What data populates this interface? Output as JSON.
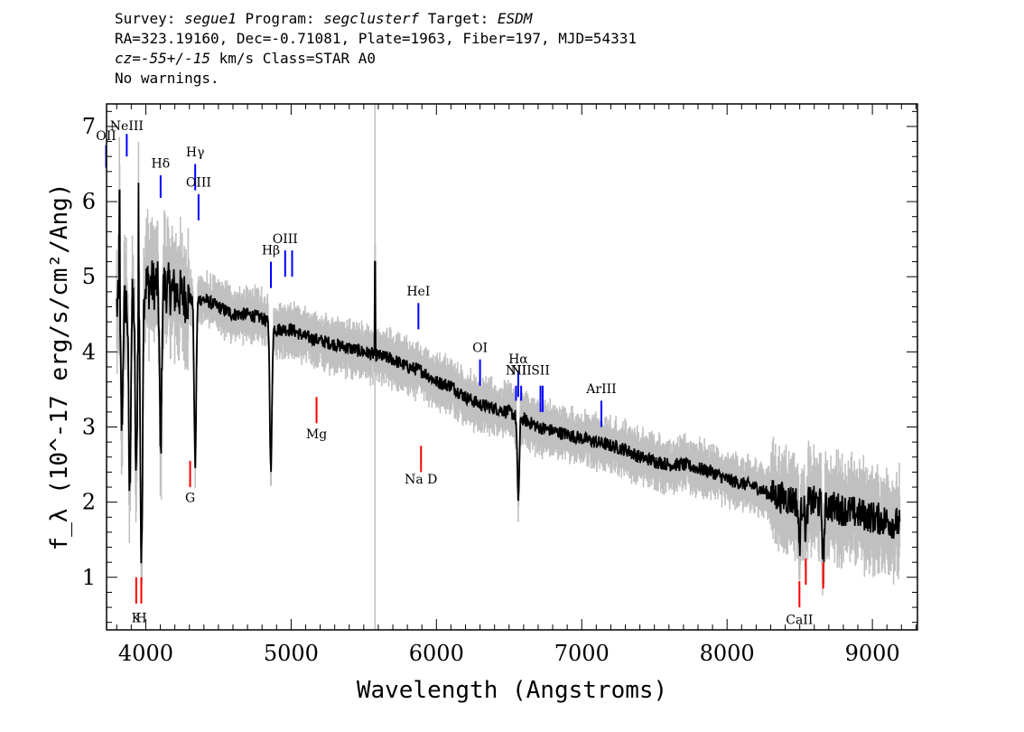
{
  "header": {
    "survey_label": "Survey: ",
    "survey": "segue1",
    "program_label": " Program: ",
    "program": "segclusterf",
    "target_label": " Target: ",
    "target": "ESDM",
    "line2": "RA=323.19160, Dec=-0.71081, Plate=1963, Fiber=197, MJD=54331",
    "cz": "cz=-55+/-15",
    "cz_units": " km/s Class=STAR A0",
    "warnings": "No warnings."
  },
  "chart_data": {
    "type": "line",
    "title": "",
    "xlabel": "Wavelength (Angstroms)",
    "ylabel": "f_λ (10^-17 erg/s/cm²/Ang)",
    "xlim": [
      3730,
      9310
    ],
    "ylim": [
      0.3,
      7.3
    ],
    "xticks": [
      "4000",
      "5000",
      "6000",
      "7000",
      "8000",
      "9000"
    ],
    "yticks": [
      "1",
      "2",
      "3",
      "4",
      "5",
      "6",
      "7"
    ],
    "grid": false,
    "colors": {
      "flux": "#000000",
      "error": "#c0c0c0",
      "emission": "#0000ff",
      "absorption": "#ff0000"
    },
    "series": [
      {
        "x": [
          3800,
          3900,
          4000,
          4100,
          4200,
          4300,
          4400,
          4500,
          4600,
          4700,
          4800,
          4900,
          5000,
          5100,
          5200,
          5300,
          5400,
          5500,
          5600,
          5700,
          5800,
          5900,
          6000,
          6100,
          6200,
          6300,
          6400,
          6500,
          6600,
          6700,
          6800,
          6900,
          7000,
          7100,
          7200,
          7300,
          7400,
          7500,
          7600,
          7700,
          7800,
          7900,
          8000,
          8100,
          8200,
          8300,
          8400,
          8500,
          8600,
          8700,
          8800,
          8900,
          9000,
          9100,
          9190
        ],
        "y": [
          4.6,
          4.7,
          4.9,
          4.9,
          4.8,
          4.7,
          4.7,
          4.6,
          4.5,
          4.5,
          4.45,
          4.3,
          4.3,
          4.2,
          4.15,
          4.1,
          4.05,
          4.0,
          3.95,
          3.9,
          3.8,
          3.75,
          3.6,
          3.55,
          3.4,
          3.3,
          3.25,
          3.2,
          3.1,
          3.0,
          2.95,
          2.9,
          2.85,
          2.8,
          2.75,
          2.7,
          2.6,
          2.55,
          2.5,
          2.5,
          2.45,
          2.4,
          2.3,
          2.25,
          2.2,
          2.1,
          2.05,
          2.0,
          2.0,
          1.95,
          1.9,
          1.85,
          1.8,
          1.75,
          1.7
        ]
      }
    ],
    "absorption_dips": [
      {
        "x": 3835,
        "y": 3.0
      },
      {
        "x": 3889,
        "y": 2.1
      },
      {
        "x": 3934,
        "y": 2.3
      },
      {
        "x": 3970,
        "y": 1.1
      },
      {
        "x": 4102,
        "y": 2.6
      },
      {
        "x": 4340,
        "y": 2.5
      },
      {
        "x": 4861,
        "y": 2.4
      },
      {
        "x": 6563,
        "y": 2.05
      },
      {
        "x": 8498,
        "y": 1.45
      },
      {
        "x": 8542,
        "y": 1.6
      },
      {
        "x": 8662,
        "y": 1.3
      }
    ],
    "spikes": [
      {
        "x": 3820,
        "y": 6.15
      },
      {
        "x": 3950,
        "y": 6.25
      },
      {
        "x": 5577,
        "y": 5.2
      }
    ],
    "line_markers": [
      {
        "label": "NeIII",
        "x": 3869,
        "kind": "emission",
        "y_top": 6.9,
        "y_bottom": 6.6,
        "label_y": 6.95
      },
      {
        "label": "OII",
        "x": 3727,
        "kind": "emission",
        "y_top": 6.75,
        "y_bottom": 6.45,
        "label_y": 6.82
      },
      {
        "label": "Hδ",
        "x": 4102,
        "kind": "emission",
        "y_top": 6.35,
        "y_bottom": 6.05,
        "label_y": 6.45
      },
      {
        "label": "Hγ",
        "x": 4340,
        "kind": "emission",
        "y_top": 6.5,
        "y_bottom": 6.15,
        "label_y": 6.6
      },
      {
        "label": "OIII",
        "x": 4363,
        "kind": "emission",
        "y_top": 6.1,
        "y_bottom": 5.75,
        "label_y": 6.2
      },
      {
        "label": "Hβ",
        "x": 4861,
        "kind": "emission",
        "y_top": 5.2,
        "y_bottom": 4.85,
        "label_y": 5.3
      },
      {
        "label": "OIII",
        "x": 4959,
        "kind": "emission",
        "y_top": 5.35,
        "y_bottom": 5.0,
        "label_y": 5.45
      },
      {
        "label": "",
        "x": 5007,
        "kind": "emission",
        "y_top": 5.35,
        "y_bottom": 5.0,
        "label_y": 0
      },
      {
        "label": "HeI",
        "x": 5876,
        "kind": "emission",
        "y_top": 4.65,
        "y_bottom": 4.3,
        "label_y": 4.75
      },
      {
        "label": "OI",
        "x": 6300,
        "kind": "emission",
        "y_top": 3.9,
        "y_bottom": 3.55,
        "label_y": 4.0
      },
      {
        "label": "NII",
        "x": 6548,
        "kind": "emission",
        "y_top": 3.55,
        "y_bottom": 3.35,
        "label_y": 3.7
      },
      {
        "label": "Hα",
        "x": 6563,
        "kind": "emission",
        "y_top": 3.75,
        "y_bottom": 3.4,
        "label_y": 3.85
      },
      {
        "label": "NII",
        "x": 6583,
        "kind": "emission",
        "y_top": 3.55,
        "y_bottom": 3.35,
        "label_y": 3.7
      },
      {
        "label": "SII",
        "x": 6716,
        "kind": "emission",
        "y_top": 3.55,
        "y_bottom": 3.2,
        "label_y": 3.7
      },
      {
        "label": "",
        "x": 6731,
        "kind": "emission",
        "y_top": 3.55,
        "y_bottom": 3.2,
        "label_y": 0
      },
      {
        "label": "ArIII",
        "x": 7135,
        "kind": "emission",
        "y_top": 3.35,
        "y_bottom": 3.0,
        "label_y": 3.45
      },
      {
        "label": "K",
        "x": 3934,
        "kind": "absorption",
        "y_top": 1.0,
        "y_bottom": 0.65,
        "label_y": 0.4
      },
      {
        "label": "H",
        "x": 3969,
        "kind": "absorption",
        "y_top": 1.0,
        "y_bottom": 0.65,
        "label_y": 0.4
      },
      {
        "label": "G",
        "x": 4305,
        "kind": "absorption",
        "y_top": 2.55,
        "y_bottom": 2.2,
        "label_y": 2.0
      },
      {
        "label": "Mg",
        "x": 5175,
        "kind": "absorption",
        "y_top": 3.4,
        "y_bottom": 3.05,
        "label_y": 2.85
      },
      {
        "label": "Na D",
        "x": 5894,
        "kind": "absorption",
        "y_top": 2.75,
        "y_bottom": 2.4,
        "label_y": 2.25
      },
      {
        "label": "CaII",
        "x": 8498,
        "kind": "absorption",
        "y_top": 0.95,
        "y_bottom": 0.6,
        "label_y": 0.38
      },
      {
        "label": "",
        "x": 8542,
        "kind": "absorption",
        "y_top": 1.25,
        "y_bottom": 0.9,
        "label_y": 0
      },
      {
        "label": "",
        "x": 8662,
        "kind": "absorption",
        "y_top": 1.2,
        "y_bottom": 0.85,
        "label_y": 0
      }
    ]
  }
}
